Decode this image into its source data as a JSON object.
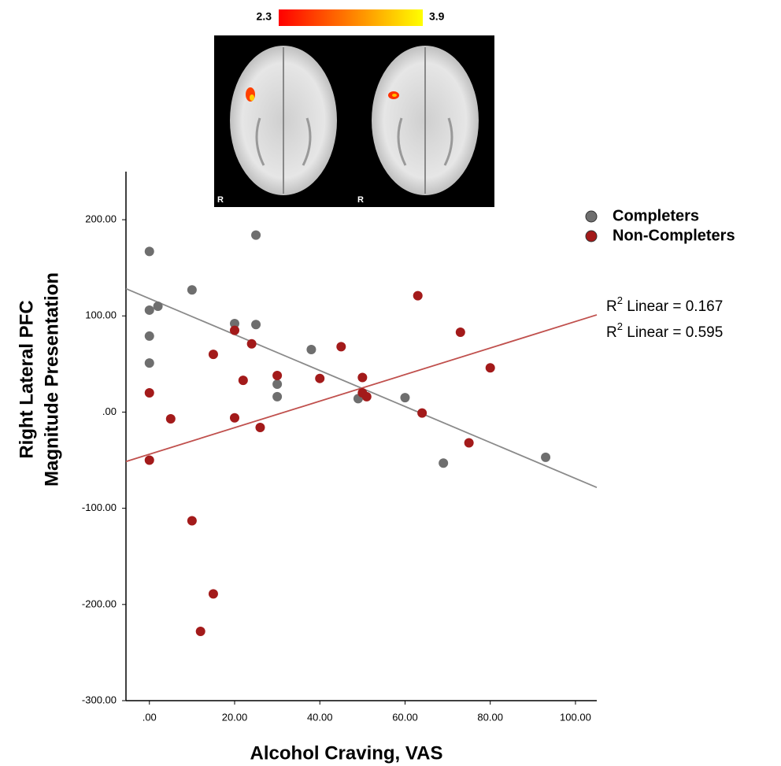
{
  "chart_data": {
    "type": "scatter",
    "x_label": "Alcohol Craving, VAS",
    "y_label": [
      "Right Lateral PFC",
      "Magnitude Presentation"
    ],
    "xlim": [
      -5.5,
      105
    ],
    "ylim": [
      -300,
      250
    ],
    "xticks": [
      {
        "value": 0,
        "label": ".00"
      },
      {
        "value": 20,
        "label": "20.00"
      },
      {
        "value": 40,
        "label": "40.00"
      },
      {
        "value": 60,
        "label": "60.00"
      },
      {
        "value": 80,
        "label": "80.00"
      },
      {
        "value": 100,
        "label": "100.00"
      }
    ],
    "yticks": [
      {
        "value": -300,
        "label": "-300.00"
      },
      {
        "value": -200,
        "label": "-200.00"
      },
      {
        "value": -100,
        "label": "-100.00"
      },
      {
        "value": 0,
        "label": ".00"
      },
      {
        "value": 100,
        "label": "100.00"
      },
      {
        "value": 200,
        "label": "200.00"
      }
    ],
    "grid": false,
    "legend": "top-right",
    "series": [
      {
        "name": "Completers",
        "color": "#6e6e6e",
        "line_color": "#8a8a8a",
        "x": [
          0,
          0,
          0,
          0,
          2,
          10,
          20,
          25,
          25,
          30,
          30,
          38,
          49,
          60,
          69,
          93
        ],
        "values": [
          167,
          106,
          79,
          51,
          110,
          127,
          92,
          184,
          91,
          29,
          16,
          65,
          14,
          15,
          -53,
          -47
        ],
        "fit": {
          "slope": -1.87,
          "intercept": 118
        }
      },
      {
        "name": "Non-Completers",
        "color": "#a31a1a",
        "line_color": "#c0504d",
        "x": [
          0,
          0,
          5,
          10,
          12,
          15,
          15,
          20,
          20,
          22,
          24,
          26,
          30,
          40,
          45,
          50,
          50,
          51,
          63,
          64,
          73,
          75,
          80
        ],
        "values": [
          20,
          -50,
          -7,
          -113,
          -228,
          60,
          -189,
          85,
          -6,
          33,
          71,
          -16,
          38,
          35,
          68,
          36,
          20,
          16,
          121,
          -1,
          83,
          -32,
          46
        ],
        "fit": {
          "slope": 1.38,
          "intercept": -43.8
        }
      }
    ],
    "annotations": [
      {
        "prefix": "R",
        "sup": "2",
        "rest": " Linear = 0.167"
      },
      {
        "prefix": "R",
        "sup": "2",
        "rest": " Linear = 0.595"
      }
    ],
    "colorbar": {
      "ticks": [
        2.3,
        3.9
      ],
      "colors": [
        "#ff0000",
        "#ffff00"
      ]
    }
  },
  "inset": {
    "labels": [
      "R",
      "R"
    ]
  }
}
